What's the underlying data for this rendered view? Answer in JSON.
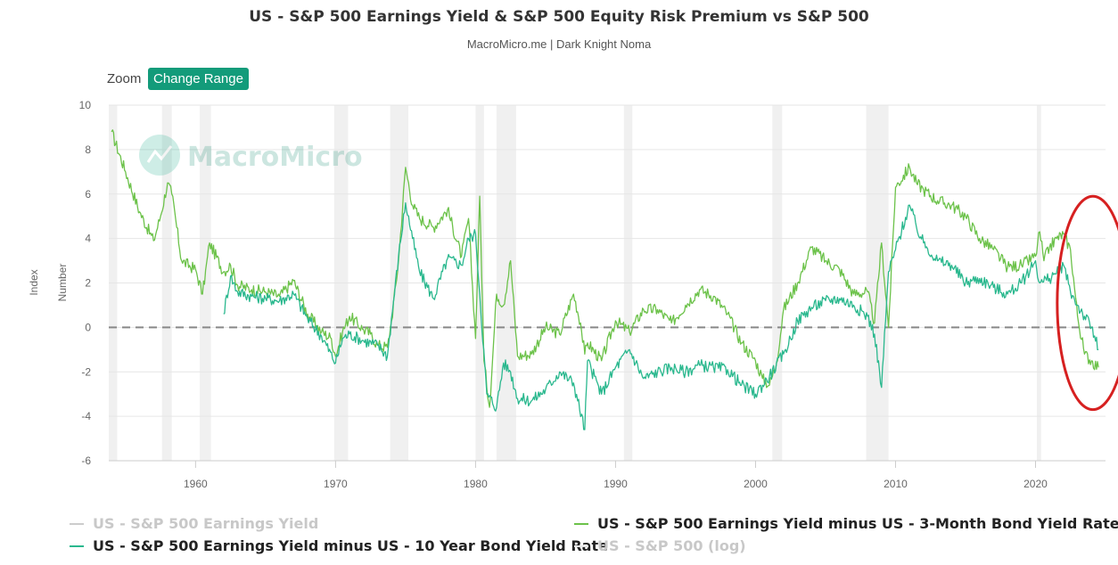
{
  "header": {
    "title": "US - S&P 500 Earnings Yield & S&P 500 Equity Risk Premium vs S&P 500",
    "subtitle": "MacroMicro.me | Dark Knight Noma"
  },
  "toolbar": {
    "zoom_label": "Zoom",
    "change_range_label": "Change Range"
  },
  "watermark": {
    "text": "MacroMicro",
    "icon": "macromicro-logo-icon"
  },
  "colors": {
    "green_light": "#6cc24a",
    "green_teal": "#2ab88e",
    "zero_line": "#888888",
    "recession": "#f0f0f0",
    "annotation": "#d62020"
  },
  "legend": [
    {
      "name": "US - S&P 500 Earnings Yield",
      "active": false
    },
    {
      "name": "US - S&P 500 Earnings Yield minus US - 3-Month Bond Yield Rate",
      "active": true
    },
    {
      "name": "US - S&P 500 Earnings Yield minus US - 10 Year Bond Yield Rate",
      "active": true
    },
    {
      "name": "US - S&P 500 (log)",
      "active": false
    }
  ],
  "chart_data": {
    "type": "line",
    "title": "US - S&P 500 Earnings Yield & S&P 500 Equity Risk Premium vs S&P 500",
    "subtitle": "MacroMicro.me | Dark Knight Noma",
    "ylabel_index": "Index",
    "ylabel_number": "Number",
    "ylim": [
      -6,
      10
    ],
    "yticks": [
      -6,
      -4,
      -2,
      0,
      2,
      4,
      6,
      8,
      10
    ],
    "xlim": [
      1953.8,
      2025.0
    ],
    "xticks": [
      1960,
      1970,
      1980,
      1990,
      2000,
      2010,
      2020
    ],
    "grid": true,
    "legend_position": "bottom",
    "zero_reference_line": 0,
    "recessions": [
      [
        1953.6,
        1954.4
      ],
      [
        1957.6,
        1958.3
      ],
      [
        1960.3,
        1961.1
      ],
      [
        1969.9,
        1970.9
      ],
      [
        1973.9,
        1975.2
      ],
      [
        1980.0,
        1980.6
      ],
      [
        1981.5,
        1982.9
      ],
      [
        1990.6,
        1991.2
      ],
      [
        2001.2,
        2001.9
      ],
      [
        2007.9,
        2009.5
      ],
      [
        2020.1,
        2020.4
      ]
    ],
    "series": [
      {
        "name": "US - S&P 500 Earnings Yield minus US - 3-Month Bond Yield Rate",
        "x": [
          1954.0,
          1955.0,
          1956.0,
          1957.0,
          1957.5,
          1958.0,
          1958.3,
          1959.0,
          1960.0,
          1960.5,
          1961.0,
          1962.0,
          1962.5,
          1963.0,
          1964.0,
          1965.0,
          1966.0,
          1967.0,
          1968.0,
          1969.0,
          1969.7,
          1970.0,
          1970.5,
          1971.0,
          1972.0,
          1972.5,
          1973.0,
          1973.7,
          1974.0,
          1974.5,
          1975.0,
          1975.5,
          1976.0,
          1977.0,
          1978.0,
          1979.0,
          1979.5,
          1980.0,
          1980.3,
          1980.6,
          1981.0,
          1981.5,
          1982.0,
          1982.5,
          1983.0,
          1984.0,
          1985.0,
          1986.0,
          1987.0,
          1987.5,
          1987.8,
          1988.0,
          1989.0,
          1990.0,
          1991.0,
          1992.0,
          1993.0,
          1994.0,
          1995.0,
          1996.0,
          1997.0,
          1998.0,
          1999.0,
          2000.0,
          2000.5,
          2001.0,
          2001.5,
          2002.0,
          2003.0,
          2004.0,
          2005.0,
          2006.0,
          2007.0,
          2008.0,
          2008.5,
          2009.0,
          2009.5,
          2010.0,
          2011.0,
          2011.5,
          2012.0,
          2013.0,
          2014.0,
          2015.0,
          2016.0,
          2017.0,
          2018.0,
          2019.0,
          2020.0,
          2020.3,
          2020.6,
          2021.0,
          2021.5,
          2022.0,
          2022.5,
          2023.0,
          2023.5,
          2024.0,
          2024.5
        ],
        "y": [
          8.8,
          7.0,
          5.2,
          3.9,
          5.0,
          6.5,
          6.0,
          3.0,
          2.6,
          1.5,
          3.8,
          2.5,
          2.8,
          1.9,
          1.7,
          1.6,
          1.4,
          2.1,
          0.6,
          -0.2,
          -0.5,
          -1.3,
          -0.2,
          0.5,
          -0.1,
          -0.3,
          -0.8,
          -0.9,
          0.3,
          3.0,
          7.2,
          5.5,
          4.9,
          4.5,
          5.3,
          3.2,
          4.9,
          -0.5,
          5.9,
          -1.5,
          -3.6,
          1.5,
          1.0,
          3.0,
          -1.3,
          -1.2,
          0.0,
          -0.3,
          1.5,
          0.2,
          -1.2,
          -0.7,
          -1.5,
          0.3,
          -0.2,
          0.8,
          0.8,
          0.2,
          1.0,
          1.7,
          1.4,
          0.6,
          -0.7,
          -1.5,
          -2.3,
          -2.6,
          -1.6,
          0.8,
          2.0,
          3.6,
          3.0,
          2.6,
          1.5,
          1.6,
          0.2,
          3.8,
          0.0,
          6.3,
          7.2,
          6.5,
          6.2,
          5.7,
          5.5,
          5.0,
          4.0,
          3.5,
          2.7,
          2.8,
          3.2,
          4.3,
          3.0,
          3.6,
          4.0,
          4.2,
          3.5,
          0.5,
          -1.2,
          -1.5,
          -1.8
        ]
      },
      {
        "name": "US - S&P 500 Earnings Yield minus US - 10 Year Bond Yield Rate",
        "x": [
          1962.0,
          1962.5,
          1963.0,
          1964.0,
          1965.0,
          1966.0,
          1967.0,
          1968.0,
          1969.0,
          1970.0,
          1970.5,
          1971.0,
          1972.0,
          1973.0,
          1973.7,
          1974.5,
          1975.0,
          1975.5,
          1976.0,
          1977.0,
          1978.0,
          1979.0,
          1979.5,
          1980.0,
          1980.3,
          1980.8,
          1981.5,
          1982.0,
          1982.5,
          1983.0,
          1984.0,
          1985.0,
          1986.0,
          1987.0,
          1987.8,
          1988.0,
          1989.0,
          1990.0,
          1991.0,
          1992.0,
          1993.0,
          1994.0,
          1995.0,
          1996.0,
          1997.0,
          1998.0,
          1999.0,
          2000.0,
          2001.0,
          2002.0,
          2002.5,
          2003.0,
          2004.0,
          2005.0,
          2006.0,
          2007.0,
          2008.0,
          2008.5,
          2009.0,
          2009.5,
          2010.0,
          2011.0,
          2011.5,
          2012.0,
          2013.0,
          2014.0,
          2015.0,
          2016.0,
          2017.0,
          2018.0,
          2019.0,
          2020.0,
          2020.3,
          2021.0,
          2022.0,
          2022.5,
          2023.0,
          2023.5,
          2024.0,
          2024.5
        ],
        "y": [
          0.6,
          2.3,
          1.6,
          1.4,
          1.3,
          1.2,
          1.5,
          0.4,
          -0.4,
          -1.6,
          -0.5,
          -0.3,
          -0.6,
          -0.8,
          -1.3,
          3.2,
          5.6,
          4.0,
          2.5,
          1.3,
          3.1,
          2.8,
          4.0,
          4.2,
          1.5,
          -3.0,
          -3.6,
          -1.6,
          -2.0,
          -3.2,
          -3.3,
          -2.8,
          -2.0,
          -2.5,
          -4.6,
          -1.5,
          -3.0,
          -1.8,
          -1.0,
          -2.3,
          -2.0,
          -1.8,
          -2.0,
          -1.7,
          -1.8,
          -1.9,
          -2.6,
          -3.0,
          -2.2,
          -1.2,
          -0.5,
          0.3,
          0.9,
          1.2,
          1.3,
          1.0,
          0.5,
          -0.3,
          -2.7,
          2.5,
          3.5,
          5.5,
          4.5,
          3.8,
          3.0,
          2.8,
          2.0,
          2.2,
          1.8,
          1.5,
          2.0,
          3.0,
          2.0,
          2.2,
          2.8,
          1.6,
          1.0,
          0.5,
          0.0,
          -1.0
        ]
      }
    ],
    "annotations": [
      {
        "type": "ellipse",
        "x_center": 2024.1,
        "y_center": 1.1,
        "x_radius": 2.55,
        "y_radius": 4.8
      }
    ]
  }
}
